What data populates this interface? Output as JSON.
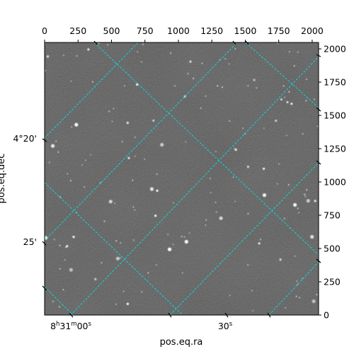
{
  "image": {
    "description_free": true,
    "colormap": "gray",
    "grid_color": "#00e5e5",
    "frame_color": "#000000"
  },
  "pixel_axes": {
    "x_ticks": [
      "0",
      "250",
      "500",
      "750",
      "1000",
      "1250",
      "1500",
      "1750",
      "2000"
    ],
    "y_ticks": [
      "0",
      "250",
      "500",
      "750",
      "1000",
      "1250",
      "1500",
      "1750",
      "2000"
    ],
    "x_tick_values": [
      0,
      250,
      500,
      750,
      1000,
      1250,
      1500,
      1750,
      2000
    ],
    "y_tick_values": [
      0,
      250,
      500,
      750,
      1000,
      1250,
      1500,
      1750,
      2000
    ],
    "x_range": [
      0,
      2048
    ],
    "y_range": [
      0,
      2048
    ]
  },
  "world_axes": {
    "ra": {
      "label": "pos.eq.ra",
      "ticks": [
        {
          "h": "8",
          "hsup": "h",
          "m": "31",
          "msup": "m",
          "s": "00",
          "ssup": "s"
        },
        {
          "s": "30",
          "ssup": "s"
        }
      ]
    },
    "dec": {
      "label": "pos.eq.dec",
      "ticks": [
        "4°20'",
        "25'"
      ]
    }
  }
}
